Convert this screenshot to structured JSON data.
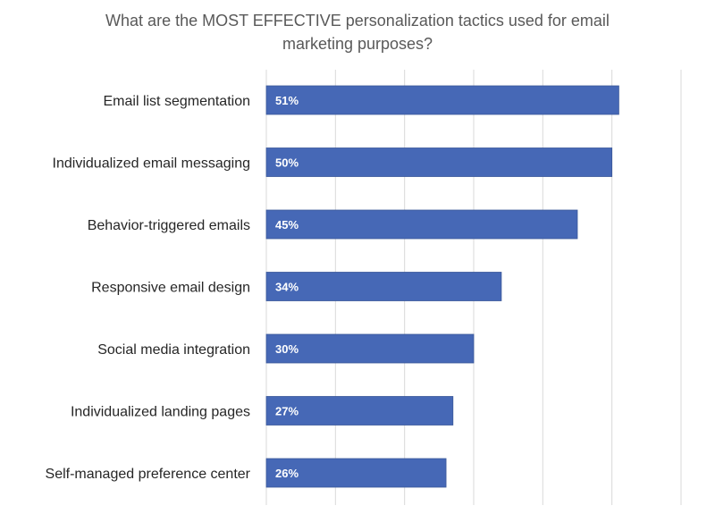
{
  "chart_data": {
    "type": "bar",
    "orientation": "horizontal",
    "title": "What are the MOST EFFECTIVE personalization tactics used for email marketing purposes?",
    "categories": [
      "Email list segmentation",
      "Individualized email messaging",
      "Behavior-triggered emails",
      "Responsive email design",
      "Social media integration",
      "Individualized landing pages",
      "Self-managed preference center"
    ],
    "values": [
      51,
      50,
      45,
      34,
      30,
      27,
      26
    ],
    "data_labels": [
      "51%",
      "50%",
      "45%",
      "34%",
      "30%",
      "27%",
      "26%"
    ],
    "xlim": [
      0,
      60
    ],
    "grid": true,
    "legend": "none",
    "bar_color": "#4668B6",
    "grid_color": "#D9D9D9"
  }
}
